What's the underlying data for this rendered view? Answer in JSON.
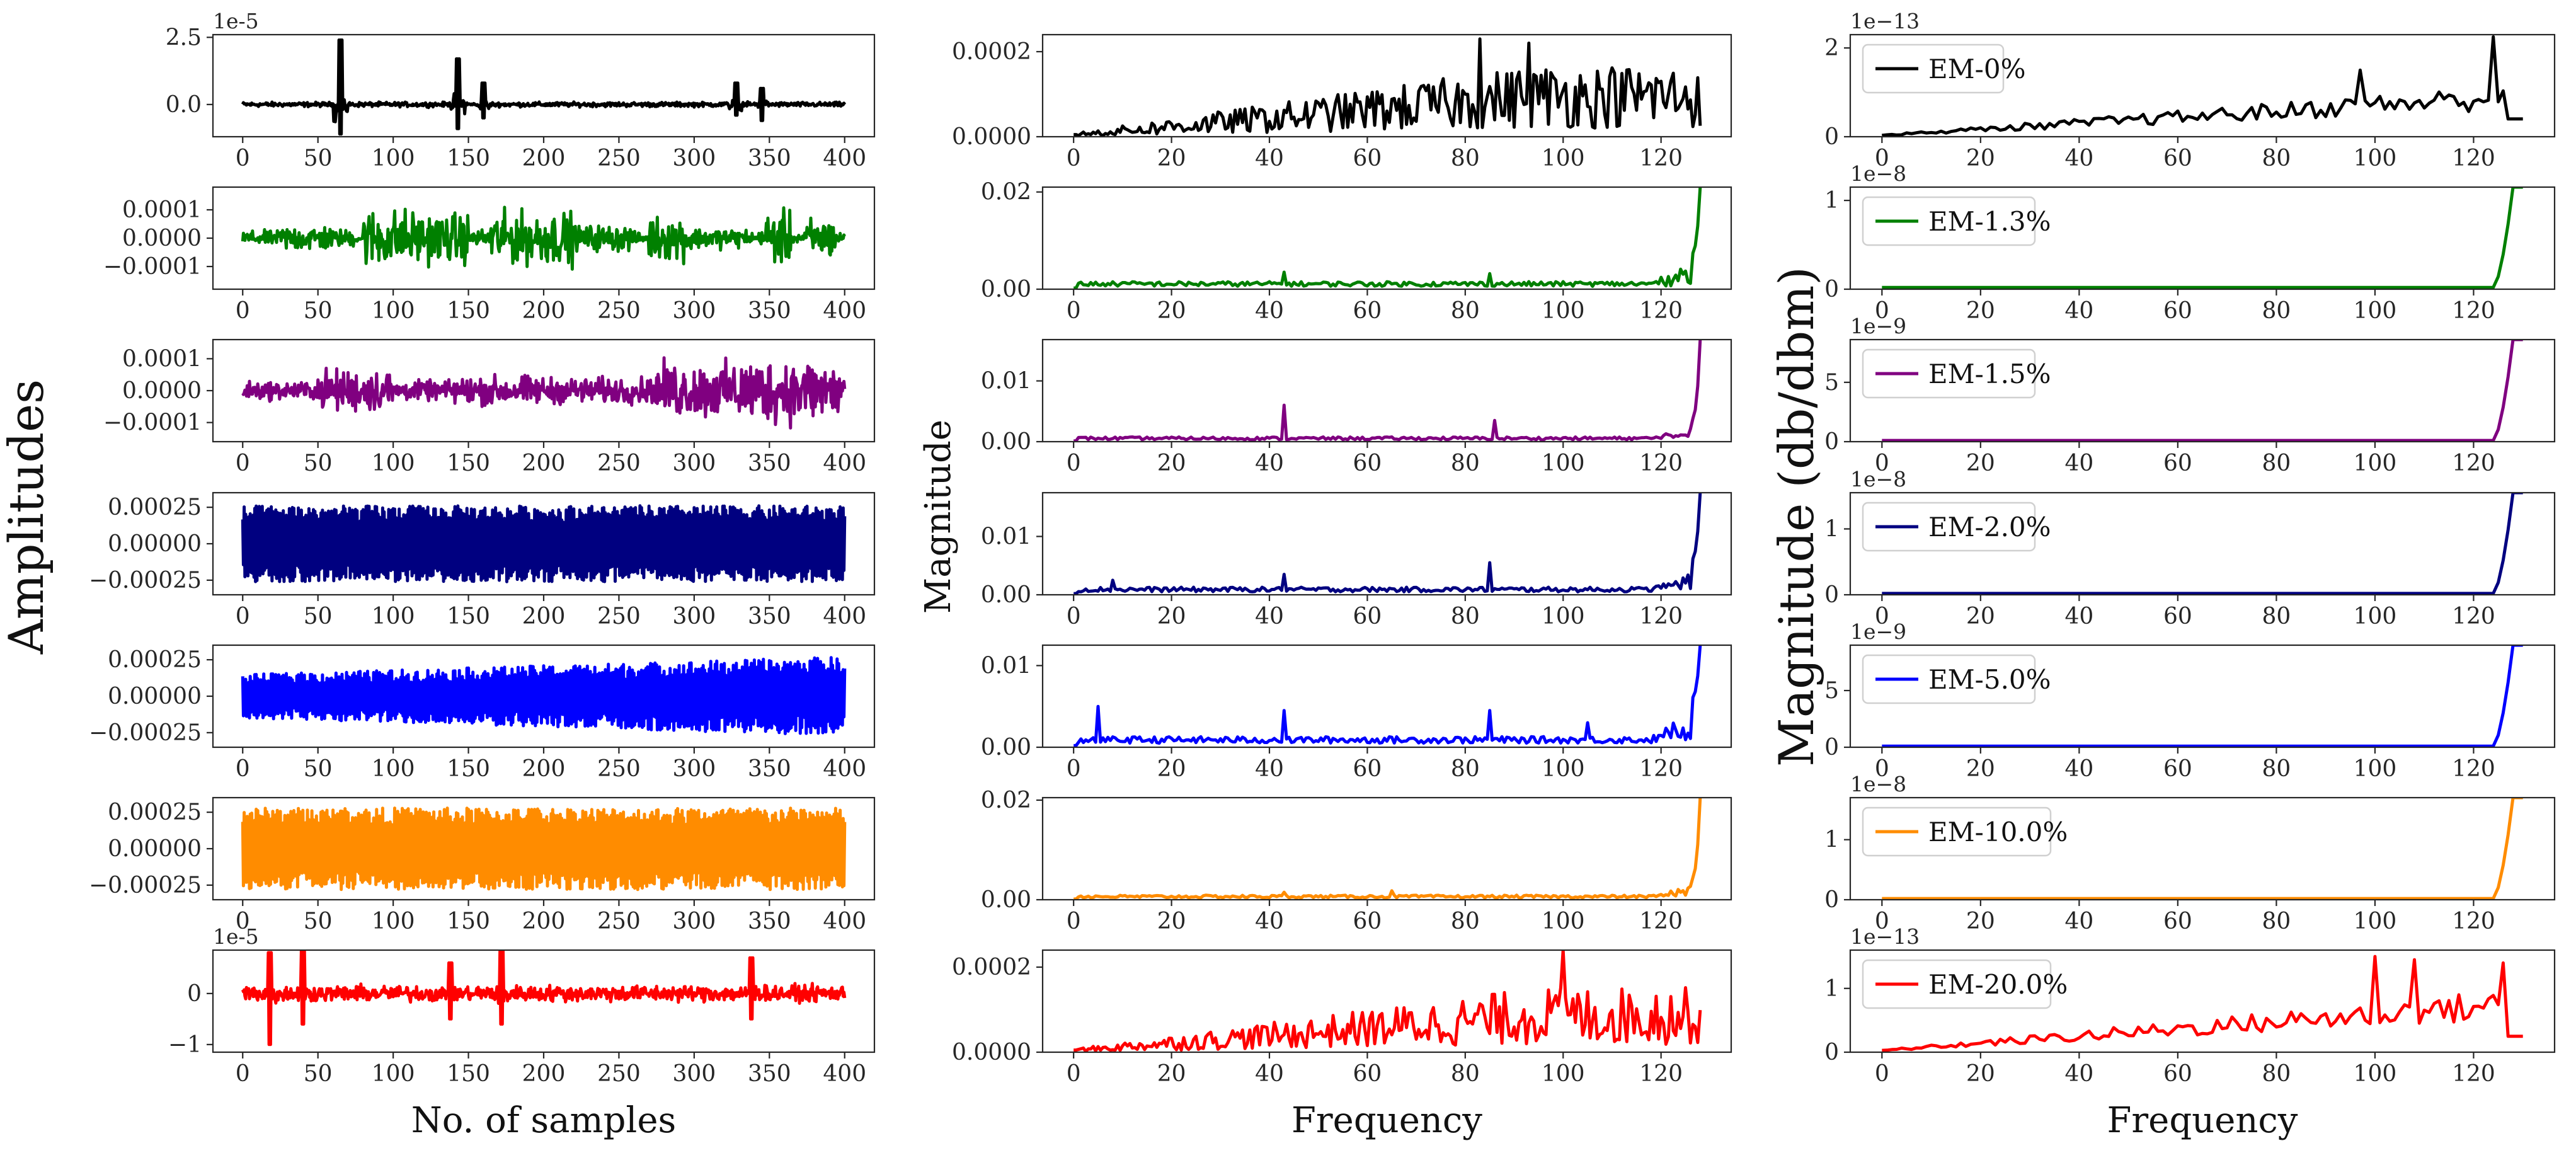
{
  "chart_data": [
    {
      "type": "line",
      "title": "",
      "xlabel": "No. of samples",
      "ylabel": "Amplitudes",
      "x_range": [
        0,
        400
      ],
      "x_ticks": [
        "0",
        "50",
        "100",
        "150",
        "200",
        "250",
        "300",
        "350",
        "400"
      ],
      "rows": [
        {
          "name": "EM-0%",
          "color": "#000000",
          "ylim": [
            -1.2e-05,
            2.6e-05
          ],
          "offset": "1e-5",
          "yticks": [
            {
              "v": 2.5e-05,
              "t": "2.5"
            },
            {
              "v": 0,
              "t": "0.0"
            }
          ],
          "style": "spiky",
          "amp": 1.2e-06,
          "spikes": [
            [
              65,
              2.4e-05,
              -1.1e-05
            ],
            [
              143,
              1.7e-05,
              -9e-06
            ],
            [
              160,
              8e-06,
              -5e-06
            ],
            [
              328,
              8e-06,
              -4e-06
            ],
            [
              345,
              6e-06,
              -6e-06
            ]
          ]
        },
        {
          "name": "EM-1.3%",
          "color": "#008000",
          "ylim": [
            -0.00018,
            0.00018
          ],
          "offset": "",
          "yticks": [
            {
              "v": 0.0001,
              "t": "0.0001"
            },
            {
              "v": 0,
              "t": "0.0000"
            },
            {
              "v": -0.0001,
              "t": "−0.0001"
            }
          ],
          "style": "bursty",
          "amp": 0.00013,
          "bursts": [
            [
              0,
              25,
              0.25
            ],
            [
              25,
              60,
              0.45
            ],
            [
              60,
              75,
              0.3
            ],
            [
              80,
              115,
              1.0
            ],
            [
              115,
              150,
              0.85
            ],
            [
              150,
              165,
              0.3
            ],
            [
              165,
              220,
              0.9
            ],
            [
              220,
              260,
              0.45
            ],
            [
              270,
              300,
              0.75
            ],
            [
              300,
              335,
              0.35
            ],
            [
              345,
              365,
              0.9
            ],
            [
              375,
              395,
              0.7
            ]
          ]
        },
        {
          "name": "EM-1.5%",
          "color": "#800080",
          "ylim": [
            -0.00016,
            0.00016
          ],
          "offset": "",
          "yticks": [
            {
              "v": 0.0001,
              "t": "0.0001"
            },
            {
              "v": 0,
              "t": "0.0000"
            },
            {
              "v": -0.0001,
              "t": "−0.0001"
            }
          ],
          "style": "bursty",
          "amp": 0.00013,
          "bursts": [
            [
              0,
              50,
              0.28
            ],
            [
              50,
              100,
              0.65
            ],
            [
              100,
              140,
              0.3
            ],
            [
              140,
              200,
              0.45
            ],
            [
              200,
              275,
              0.4
            ],
            [
              275,
              330,
              0.85
            ],
            [
              330,
              400,
              1.0
            ]
          ]
        },
        {
          "name": "EM-2.0%",
          "color": "#000080",
          "ylim": [
            -0.00035,
            0.00035
          ],
          "offset": "",
          "yticks": [
            {
              "v": 0.00025,
              "t": "0.00025"
            },
            {
              "v": 0,
              "t": "0.00000"
            },
            {
              "v": -0.00025,
              "t": "−0.00025"
            }
          ],
          "style": "dense",
          "amp": 0.00026
        },
        {
          "name": "EM-5.0%",
          "color": "#0000ff",
          "ylim": [
            -0.00035,
            0.00035
          ],
          "offset": "",
          "yticks": [
            {
              "v": 0.00025,
              "t": "0.00025"
            },
            {
              "v": 0,
              "t": "0.00000"
            },
            {
              "v": -0.00025,
              "t": "−0.00025"
            }
          ],
          "style": "grow",
          "amp": 0.00027
        },
        {
          "name": "EM-10.0%",
          "color": "#ff8c00",
          "ylim": [
            -0.00035,
            0.00035
          ],
          "offset": "",
          "yticks": [
            {
              "v": 0.00025,
              "t": "0.00025"
            },
            {
              "v": 0,
              "t": "0.00000"
            },
            {
              "v": -0.00025,
              "t": "−0.00025"
            }
          ],
          "style": "dense",
          "amp": 0.00028
        },
        {
          "name": "EM-20.0%",
          "color": "#ff0000",
          "ylim": [
            -1.15e-05,
            8.5e-06
          ],
          "offset": "1e-5",
          "yticks": [
            {
              "v": 0,
              "t": "0"
            },
            {
              "v": -1e-05,
              "t": "−1"
            }
          ],
          "style": "spiky",
          "amp": 2.2e-06,
          "spikes": [
            [
              18,
              8e-06,
              -1e-05
            ],
            [
              40,
              9e-06,
              -6e-06
            ],
            [
              138,
              6e-06,
              -5e-06
            ],
            [
              172,
              9e-06,
              -6e-06
            ],
            [
              338,
              7e-06,
              -5e-06
            ]
          ]
        }
      ]
    },
    {
      "type": "line",
      "title": "",
      "xlabel": "Frequency",
      "ylabel": "Magnitude",
      "x_range": [
        0,
        128
      ],
      "x_ticks": [
        "0",
        "20",
        "40",
        "60",
        "80",
        "100",
        "120"
      ],
      "rows": [
        {
          "color": "#000000",
          "ylim": [
            0,
            0.00024
          ],
          "yticks": [
            {
              "v": 0,
              "t": "0.0000"
            },
            {
              "v": 0.0002,
              "t": "0.0002"
            }
          ],
          "style": "noisyrise",
          "base": 0.0001,
          "peaks": [
            [
              83,
              0.00023
            ],
            [
              93,
              0.00022
            ]
          ]
        },
        {
          "color": "#008000",
          "ylim": [
            0,
            0.021
          ],
          "yticks": [
            {
              "v": 0,
              "t": "0.00"
            },
            {
              "v": 0.02,
              "t": "0.02"
            }
          ],
          "style": "flatblow",
          "base": 0.0012,
          "peaks": [
            [
              43,
              0.0035
            ],
            [
              85,
              0.0032
            ]
          ],
          "end": 0.021
        },
        {
          "color": "#800080",
          "ylim": [
            0,
            0.0168
          ],
          "yticks": [
            {
              "v": 0,
              "t": "0.00"
            },
            {
              "v": 0.01,
              "t": "0.01"
            }
          ],
          "style": "flatblow",
          "base": 0.0006,
          "peaks": [
            [
              43,
              0.006
            ],
            [
              86,
              0.0035
            ]
          ],
          "end": 0.0168
        },
        {
          "color": "#000080",
          "ylim": [
            0,
            0.0175
          ],
          "yticks": [
            {
              "v": 0,
              "t": "0.00"
            },
            {
              "v": 0.01,
              "t": "0.01"
            }
          ],
          "style": "flatblow",
          "base": 0.001,
          "peaks": [
            [
              8,
              0.0025
            ],
            [
              43,
              0.0035
            ],
            [
              85,
              0.0055
            ]
          ],
          "end": 0.0175
        },
        {
          "color": "#0000ff",
          "ylim": [
            0,
            0.0125
          ],
          "yticks": [
            {
              "v": 0,
              "t": "0.00"
            },
            {
              "v": 0.01,
              "t": "0.01"
            }
          ],
          "style": "flatblow",
          "base": 0.001,
          "peaks": [
            [
              5,
              0.005
            ],
            [
              43,
              0.0045
            ],
            [
              85,
              0.0045
            ],
            [
              105,
              0.003
            ]
          ],
          "end": 0.0125
        },
        {
          "color": "#ff8c00",
          "ylim": [
            0,
            0.0205
          ],
          "yticks": [
            {
              "v": 0,
              "t": "0.00"
            },
            {
              "v": 0.02,
              "t": "0.02"
            }
          ],
          "style": "flatblow",
          "base": 0.0007,
          "peaks": [
            [
              43,
              0.0015
            ],
            [
              65,
              0.0018
            ]
          ],
          "end": 0.0205
        },
        {
          "color": "#ff0000",
          "ylim": [
            0,
            0.00024
          ],
          "yticks": [
            {
              "v": 0,
              "t": "0.0000"
            },
            {
              "v": 0.0002,
              "t": "0.0002"
            }
          ],
          "style": "noisyrise",
          "base": 9e-05,
          "peaks": [
            [
              100,
              0.00024
            ]
          ]
        }
      ]
    },
    {
      "type": "line",
      "title": "",
      "xlabel": "Frequency",
      "ylabel": "Magnitude (db/dbm)",
      "x_range": [
        0,
        130
      ],
      "x_ticks": [
        "0",
        "20",
        "40",
        "60",
        "80",
        "100",
        "120"
      ],
      "rows": [
        {
          "legend": "EM-0%",
          "color": "#000000",
          "ylim": [
            0,
            2.3
          ],
          "offset": "1e−13",
          "yticks": [
            {
              "v": 0,
              "t": "0"
            },
            {
              "v": 2,
              "t": "2"
            }
          ],
          "style": "smoothrise",
          "top": 1.2,
          "peaks": [
            [
              97,
              1.5
            ],
            [
              124,
              2.25
            ]
          ],
          "endval": 0.4
        },
        {
          "legend": "EM-1.3%",
          "color": "#008000",
          "ylim": [
            0,
            1.15
          ],
          "offset": "1e−8",
          "yticks": [
            {
              "v": 0,
              "t": "0"
            },
            {
              "v": 1,
              "t": "1"
            }
          ],
          "style": "hockey",
          "base": 0.02,
          "end": 1.15
        },
        {
          "legend": "EM-1.5%",
          "color": "#800080",
          "ylim": [
            0,
            8.6
          ],
          "offset": "1e−9",
          "yticks": [
            {
              "v": 0,
              "t": "0"
            },
            {
              "v": 5,
              "t": "5"
            }
          ],
          "style": "hockey",
          "base": 0.1,
          "end": 8.6
        },
        {
          "legend": "EM-2.0%",
          "color": "#000080",
          "ylim": [
            0,
            1.55
          ],
          "offset": "1e−8",
          "yticks": [
            {
              "v": 0,
              "t": "0"
            },
            {
              "v": 1,
              "t": "1"
            }
          ],
          "style": "hockey",
          "base": 0.02,
          "end": 1.55
        },
        {
          "legend": "EM-5.0%",
          "color": "#0000ff",
          "ylim": [
            0,
            9
          ],
          "offset": "1e−9",
          "yticks": [
            {
              "v": 0,
              "t": "0"
            },
            {
              "v": 5,
              "t": "5"
            }
          ],
          "style": "hockey",
          "base": 0.1,
          "end": 9
        },
        {
          "legend": "EM-10.0%",
          "color": "#ff8c00",
          "ylim": [
            0,
            1.7
          ],
          "offset": "1e−8",
          "yticks": [
            {
              "v": 0,
              "t": "0"
            },
            {
              "v": 1,
              "t": "1"
            }
          ],
          "style": "hockey",
          "base": 0.02,
          "end": 1.7
        },
        {
          "legend": "EM-20.0%",
          "color": "#ff0000",
          "ylim": [
            0,
            1.6
          ],
          "offset": "1e−13",
          "yticks": [
            {
              "v": 0,
              "t": "0"
            },
            {
              "v": 1,
              "t": "1"
            }
          ],
          "style": "smoothrise",
          "top": 1.0,
          "peaks": [
            [
              100,
              1.5
            ],
            [
              108,
              1.45
            ],
            [
              126,
              1.4
            ]
          ],
          "endval": 0.25
        }
      ]
    }
  ]
}
